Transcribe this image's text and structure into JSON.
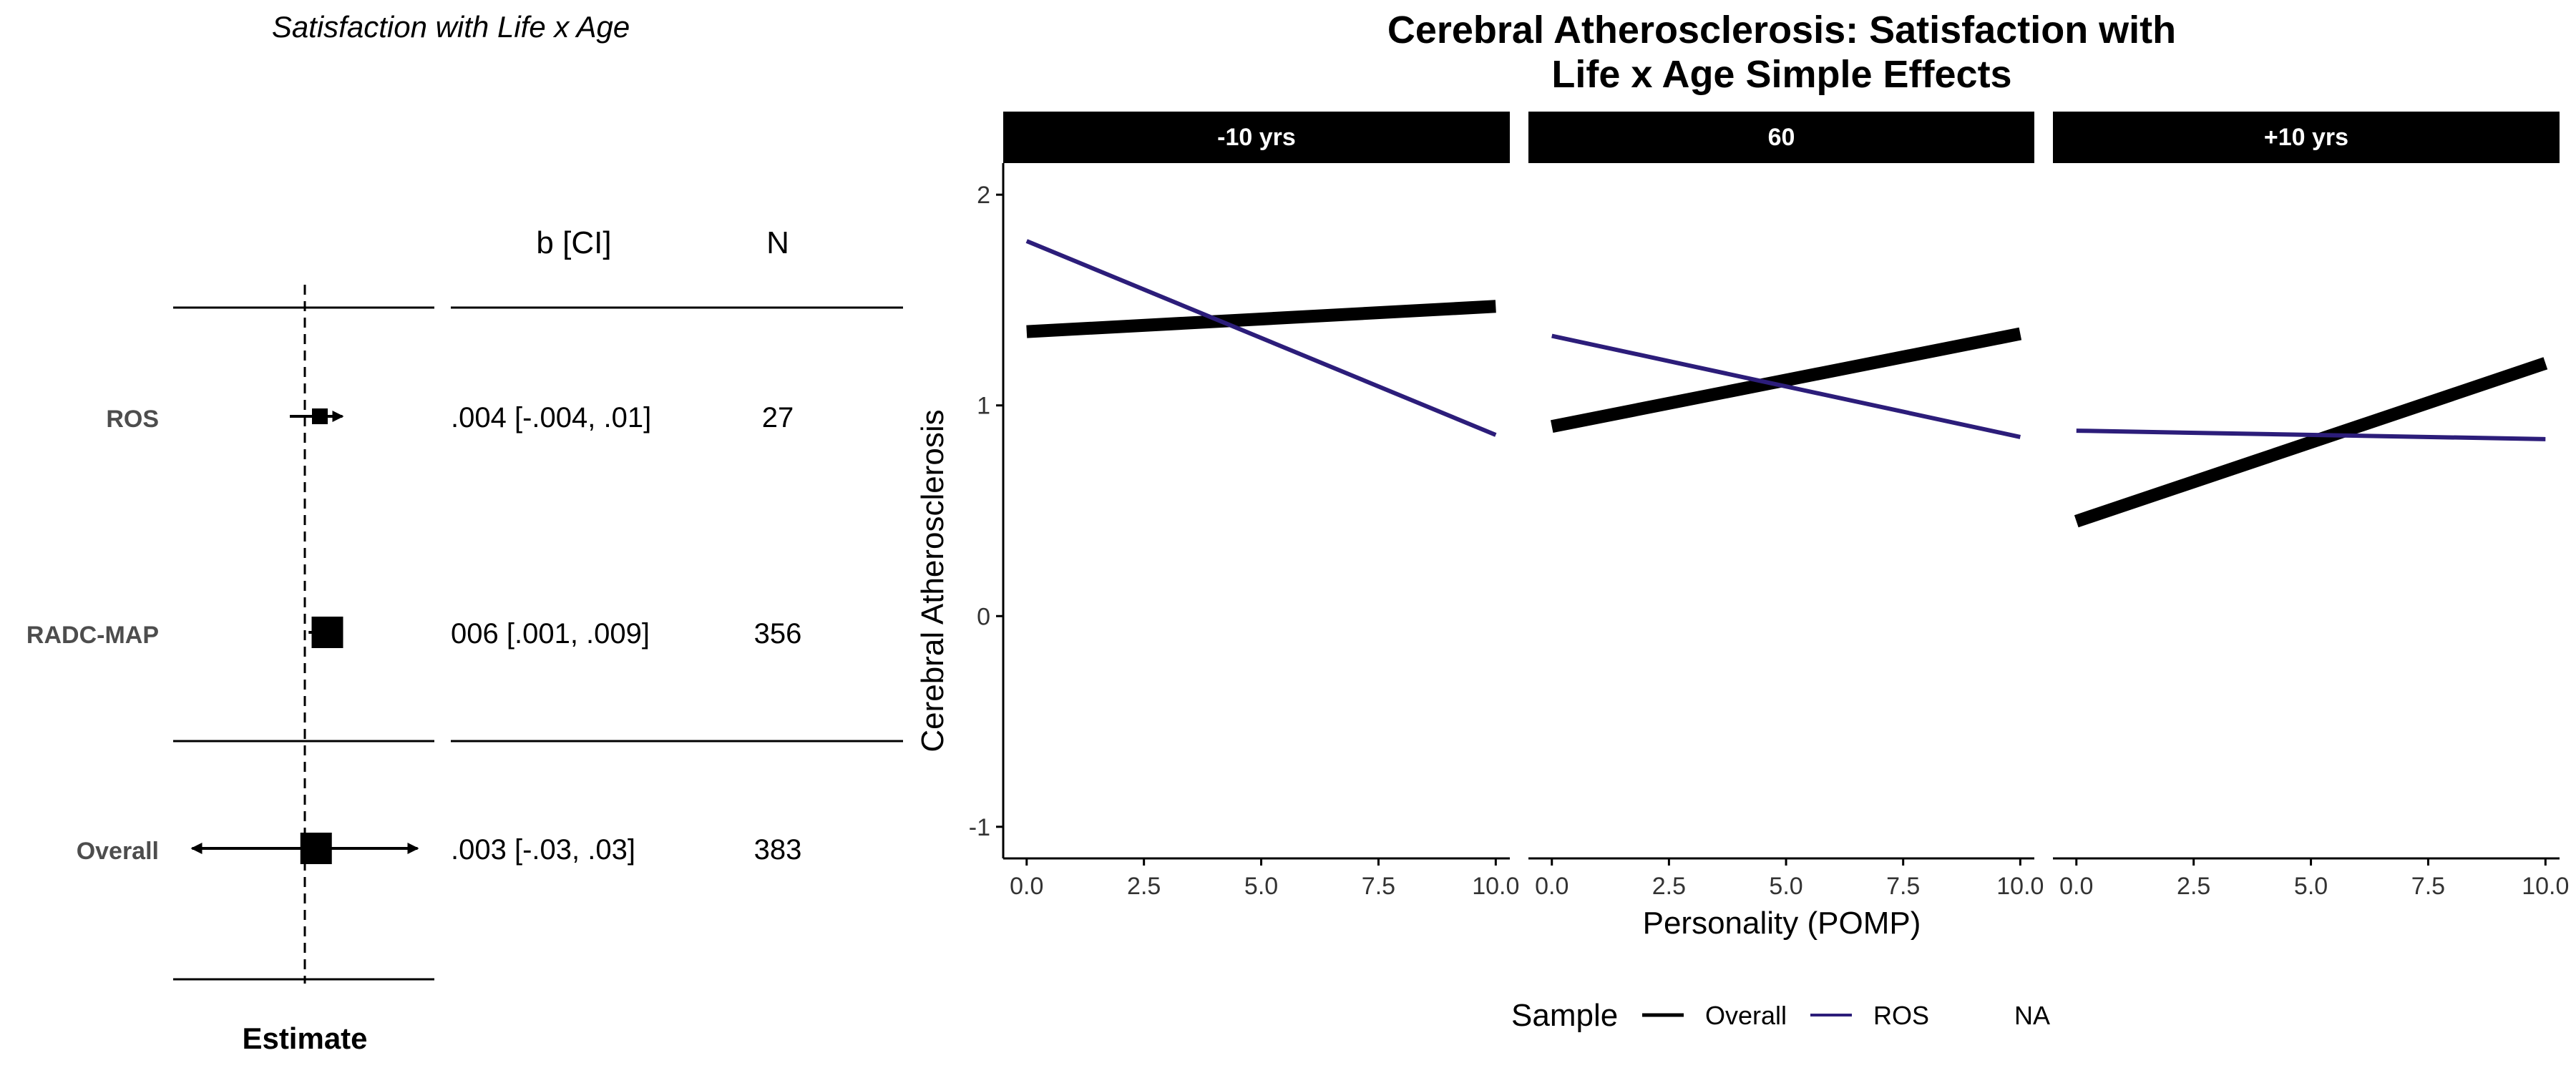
{
  "forest": {
    "title": "Satisfaction with Life x Age",
    "col_b": "b [CI]",
    "col_n": "N",
    "xlabel": "Estimate",
    "rows": [
      {
        "label": "ROS",
        "ci_text": ".004 [-.004, .01]",
        "n": "27",
        "estimate": 0.004,
        "lower": -0.004,
        "upper": 0.01,
        "weight": "small",
        "lower_arrow": false,
        "upper_arrow": true
      },
      {
        "label": "RADC-MAP",
        "ci_text": "006 [.001, .009]",
        "n": "356",
        "estimate": 0.006,
        "lower": 0.001,
        "upper": 0.009,
        "weight": "large",
        "lower_arrow": false,
        "upper_arrow": true
      },
      {
        "label": "Overall",
        "ci_text": ".003 [-.03, .03]",
        "n": "383",
        "estimate": 0.003,
        "lower": -0.03,
        "upper": 0.03,
        "weight": "large",
        "lower_arrow": true,
        "upper_arrow": true
      }
    ]
  },
  "chart_data": {
    "type": "line",
    "title_lines": [
      "Cerebral Atherosclerosis: Satisfaction with",
      "Life x Age Simple Effects"
    ],
    "xlabel": "Personality (POMP)",
    "ylabel": "Cerebral Atherosclerosis",
    "xlim": [
      -0.5,
      10.3
    ],
    "ylim": [
      -1.15,
      2.15
    ],
    "x_ticks": [
      "0.0",
      "2.5",
      "5.0",
      "7.5",
      "10.0"
    ],
    "x_tick_values": [
      0,
      2.5,
      5,
      7.5,
      10
    ],
    "y_ticks": [
      "-1",
      "0",
      "1",
      "2"
    ],
    "y_tick_values": [
      -1,
      0,
      1,
      2
    ],
    "grid": false,
    "legend": {
      "title": "Sample",
      "position": "bottom",
      "items": [
        {
          "name": "Overall",
          "color": "#000000",
          "style": "thick"
        },
        {
          "name": "ROS",
          "color": "#2c1d7a",
          "style": "thin"
        },
        {
          "name": "NA",
          "color": null,
          "style": "none"
        }
      ]
    },
    "facets": [
      {
        "label": "-10 yrs",
        "series": [
          {
            "name": "Overall",
            "x": [
              0,
              10
            ],
            "y": [
              1.35,
              1.47
            ]
          },
          {
            "name": "ROS",
            "x": [
              0,
              10
            ],
            "y": [
              1.78,
              0.86
            ]
          }
        ]
      },
      {
        "label": "60",
        "series": [
          {
            "name": "Overall",
            "x": [
              0,
              10
            ],
            "y": [
              0.9,
              1.34
            ]
          },
          {
            "name": "ROS",
            "x": [
              0,
              10
            ],
            "y": [
              1.33,
              0.85
            ]
          }
        ]
      },
      {
        "label": "+10 yrs",
        "series": [
          {
            "name": "Overall",
            "x": [
              0,
              10
            ],
            "y": [
              0.45,
              1.2
            ]
          },
          {
            "name": "ROS",
            "x": [
              0,
              10
            ],
            "y": [
              0.88,
              0.84
            ]
          }
        ]
      }
    ]
  }
}
